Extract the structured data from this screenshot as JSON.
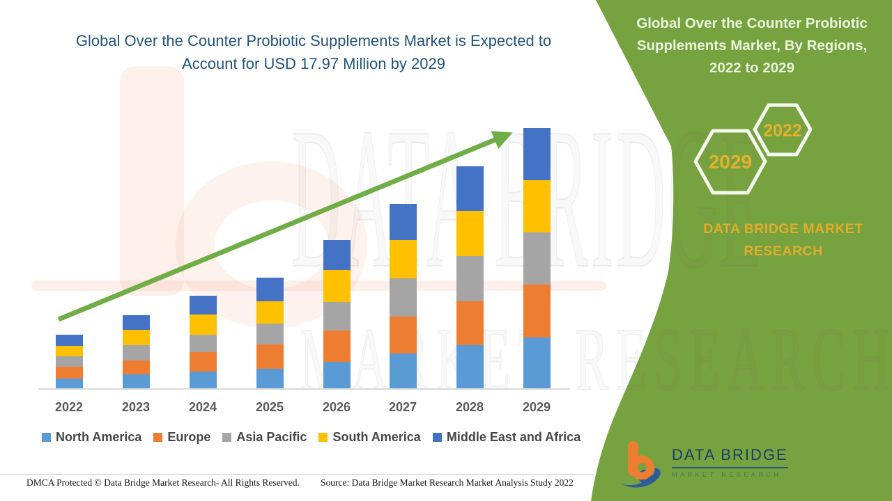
{
  "main_title": {
    "line1": "Global Over the Counter Probiotic Supplements Market is Expected to",
    "line2": "Account for USD 17.97 Million by 2029",
    "color": "#21527B"
  },
  "side_panel": {
    "background_color": "#76A23F",
    "title_line1": "Global Over the Counter Probiotic",
    "title_line2": "Supplements Market, By Regions,",
    "title_line3": "2022 to 2029",
    "hexagons": [
      {
        "label": "2022"
      },
      {
        "label": "2029"
      }
    ],
    "brand_line1": "DATA BRIDGE MARKET",
    "brand_line2": "RESEARCH",
    "brand_color": "#E2AC2B",
    "logo": {
      "name": "DATA BRIDGE",
      "subtext": "MARKET RESEARCH"
    }
  },
  "watermarks": {
    "line1": "DATA BRIDGE",
    "line2": "MARKET RESEARCH"
  },
  "chart_data": {
    "type": "bar",
    "stacked": true,
    "title": "Global Over the Counter Probiotic Supplements Market is Expected to Account for USD 17.97 Million by 2029",
    "unit": "USD Million",
    "xlabel": "",
    "ylabel": "",
    "ylim": [
      0,
      18
    ],
    "grid": false,
    "legend_position": "bottom",
    "categories": [
      "2022",
      "2023",
      "2024",
      "2025",
      "2026",
      "2027",
      "2028",
      "2029"
    ],
    "series": [
      {
        "name": "North America",
        "color": "#5B9BD5",
        "values": [
          0.72,
          1.01,
          1.2,
          1.41,
          1.89,
          2.44,
          3.0,
          3.57
        ]
      },
      {
        "name": "Europe",
        "color": "#ED7D31",
        "values": [
          0.84,
          0.97,
          1.33,
          1.67,
          2.16,
          2.56,
          3.04,
          3.6
        ]
      },
      {
        "name": "Asia Pacific",
        "color": "#A5A5A5",
        "values": [
          0.72,
          1.05,
          1.2,
          1.44,
          1.92,
          2.64,
          3.11,
          3.6
        ]
      },
      {
        "name": "South America",
        "color": "#FFC000",
        "values": [
          0.7,
          1.04,
          1.38,
          1.53,
          2.24,
          2.63,
          3.12,
          3.6
        ]
      },
      {
        "name": "Middle East and Africa",
        "color": "#4472C4",
        "values": [
          0.76,
          1.01,
          1.3,
          1.61,
          2.05,
          2.48,
          3.05,
          3.6
        ]
      }
    ],
    "totals": [
      3.74,
      5.08,
      6.41,
      7.66,
      10.26,
      12.75,
      15.32,
      17.97
    ],
    "annotations": [
      {
        "type": "trend_arrow",
        "color": "#70AD47",
        "from_category": "2022",
        "to_category": "2029",
        "direction": "up"
      }
    ]
  },
  "footer": {
    "left": "DMCA Protected © Data Bridge Market Research- All Rights Reserved.",
    "right": "Source: Data Bridge Market Research Market Analysis Study 2022"
  }
}
